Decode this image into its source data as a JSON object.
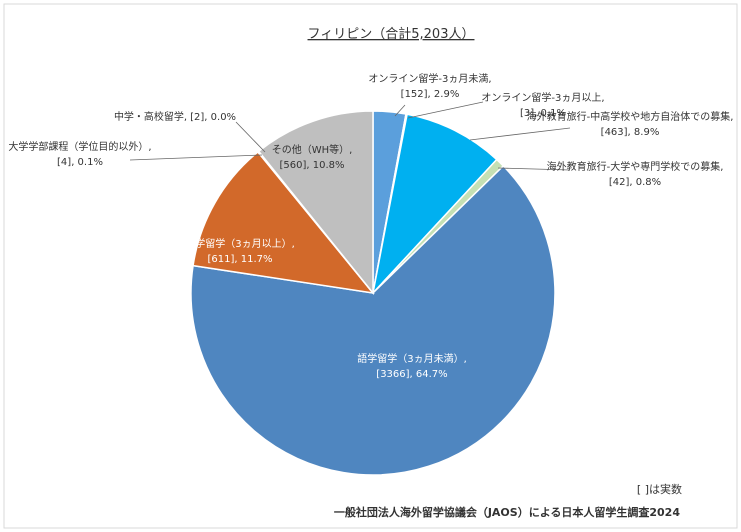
{
  "chart_data": {
    "type": "pie",
    "title": "フィリピン（合計5,203人）",
    "categories": [
      "オンライン留学-3ヵ月未満,",
      "オンライン留学-3ヵ月以上,",
      "海外教育旅行-中高学校や地方自治体での募集,",
      "海外教育旅行-大学や専門学校での募集,",
      "語学留学（3ヵ月未満）,",
      "語学留学（3ヵ月以上）,",
      "大学学部課程（学位目的以外）,",
      "中学・高校留学,",
      "その他（WH等）,"
    ],
    "values": [
      2.9,
      0.1,
      8.9,
      0.8,
      64.7,
      11.7,
      0.1,
      0.0,
      10.8
    ],
    "value_labels": [
      "[152], 2.9%",
      "[3], 0.1%",
      "[463], 8.9%",
      "[42], 0.8%",
      "[3366], 64.7%",
      "[611], 11.7%",
      "[4], 0.1%",
      "[2], 0.0%",
      "[560], 10.8%"
    ],
    "colors": [
      "#5b9fdc",
      "#2f6fb0",
      "#00b0f0",
      "#c5e0b4",
      "#4f86c0",
      "#d2692a",
      "#7f7f7f",
      "#ffc000",
      "#bfbfbf"
    ],
    "note": "[ ]は実数",
    "source": "一般社団法人海外留学協議会（JAOS）による日本人留学生調査2024"
  }
}
